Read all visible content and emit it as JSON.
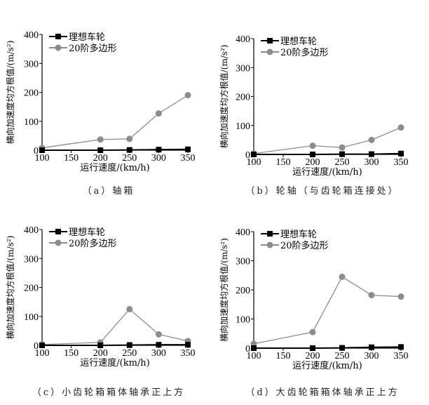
{
  "chart_data": [
    {
      "type": "line",
      "caption": "（a）轴箱",
      "xlabel": "运行速度/(km/h)",
      "ylabel": "横向加速度均方根值/(m/s²)",
      "xlim": [
        100,
        350
      ],
      "ylim": [
        0,
        400
      ],
      "xticks": [
        100,
        150,
        200,
        250,
        300,
        350
      ],
      "yticks": [
        0,
        100,
        200,
        300,
        400
      ],
      "legend_position": "top-left",
      "x": [
        100,
        200,
        250,
        300,
        350
      ],
      "series": [
        {
          "name": "理想车轮",
          "values": [
            0,
            0,
            1,
            2,
            3
          ],
          "color": "#000000",
          "marker": "square"
        },
        {
          "name": "20阶多边形",
          "values": [
            8,
            37,
            39,
            127,
            190
          ],
          "color": "#8c8c8c",
          "marker": "circle"
        }
      ]
    },
    {
      "type": "line",
      "caption": "（b）轮轴（与齿轮箱连接处）",
      "xlabel": "运行速度/(km/h)",
      "ylabel": "横向加速度均方根值/(m/s²)",
      "xlim": [
        100,
        350
      ],
      "ylim": [
        0,
        400
      ],
      "xticks": [
        100,
        150,
        200,
        250,
        300,
        350
      ],
      "yticks": [
        0,
        100,
        200,
        300,
        400
      ],
      "legend_position": "top-left",
      "x": [
        100,
        200,
        250,
        300,
        350
      ],
      "series": [
        {
          "name": "理想车轮",
          "values": [
            0,
            0,
            1,
            1,
            3
          ],
          "color": "#000000",
          "marker": "square"
        },
        {
          "name": "20阶多边形",
          "values": [
            3,
            30,
            24,
            50,
            93
          ],
          "color": "#8c8c8c",
          "marker": "circle"
        }
      ]
    },
    {
      "type": "line",
      "caption": "（c）小齿轮箱箱体轴承正上方",
      "xlabel": "运行速度/(km/h)",
      "ylabel": "横向加速度均方根值/(m/s²)",
      "xlim": [
        100,
        350
      ],
      "ylim": [
        0,
        400
      ],
      "xticks": [
        100,
        150,
        200,
        250,
        300,
        350
      ],
      "yticks": [
        0,
        100,
        200,
        300,
        400
      ],
      "legend_position": "top-left",
      "x": [
        100,
        200,
        250,
        300,
        350
      ],
      "series": [
        {
          "name": "理想车轮",
          "values": [
            0,
            0,
            1,
            2,
            2
          ],
          "color": "#000000",
          "marker": "square"
        },
        {
          "name": "20阶多边形",
          "values": [
            3,
            10,
            125,
            38,
            15
          ],
          "color": "#8c8c8c",
          "marker": "circle"
        }
      ]
    },
    {
      "type": "line",
      "caption": "（d）大齿轮箱箱体轴承正上方",
      "xlabel": "运行速度/(km/h)",
      "ylabel": "横向加速度均方根值/(m/s²)",
      "xlim": [
        100,
        350
      ],
      "ylim": [
        0,
        400
      ],
      "xticks": [
        100,
        150,
        200,
        250,
        300,
        350
      ],
      "yticks": [
        0,
        100,
        200,
        300,
        400
      ],
      "legend_position": "top-left",
      "x": [
        100,
        200,
        250,
        300,
        350
      ],
      "series": [
        {
          "name": "理想车轮",
          "values": [
            0,
            0,
            1,
            3,
            4
          ],
          "color": "#000000",
          "marker": "square"
        },
        {
          "name": "20阶多边形",
          "values": [
            15,
            55,
            245,
            182,
            177
          ],
          "color": "#8c8c8c",
          "marker": "circle"
        }
      ]
    }
  ]
}
